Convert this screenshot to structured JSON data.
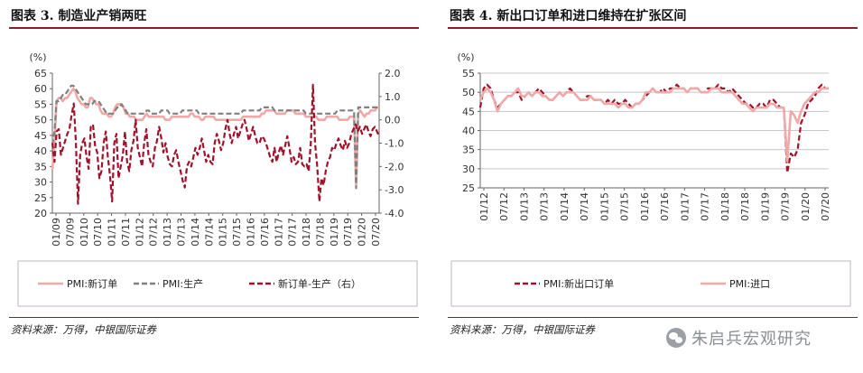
{
  "left": {
    "title": "图表 3. 制造业产销两旺",
    "source": "资料来源：万得，中银国际证券"
  },
  "right": {
    "title": "图表 4. 新出口订单和进口维持在扩张区间",
    "source": "资料来源：万得，中银国际证券"
  },
  "watermark": {
    "text": "朱启兵宏观研究",
    "icon": "wechat-icon"
  },
  "chart_data": [
    {
      "type": "line",
      "unit": "(%)",
      "grid": false,
      "legend_placement": "bottom",
      "colors": {
        "new_orders": "#f0a8a8",
        "production": "#808080",
        "diff": "#a0122a"
      },
      "ylim": [
        20,
        65
      ],
      "y2lim": [
        -4,
        2
      ],
      "yticks": [
        65,
        60,
        55,
        50,
        45,
        40,
        35,
        30,
        25,
        20
      ],
      "y2ticks": [
        "2.0",
        "1.0",
        "0.0",
        "-1.0",
        "-2.0",
        "-3.0",
        "-4.0"
      ],
      "x_tick_labels": [
        "01/09",
        "07/09",
        "01/10",
        "07/10",
        "01/11",
        "07/11",
        "01/12",
        "07/12",
        "01/13",
        "07/13",
        "01/14",
        "07/14",
        "01/15",
        "07/15",
        "01/16",
        "07/16",
        "01/17",
        "07/17",
        "01/18",
        "07/18",
        "01/19",
        "07/19",
        "01/20",
        "07/20"
      ],
      "series": [
        {
          "name": "PMI:新订单",
          "axis": "left",
          "style": "solid",
          "values": [
            34,
            42,
            56,
            57,
            57,
            56,
            57,
            57,
            58,
            59,
            60,
            59,
            57,
            56,
            55,
            55,
            54,
            54,
            57,
            57,
            56,
            55,
            55,
            53,
            52,
            52,
            52,
            51,
            51,
            52,
            54,
            55,
            55,
            55,
            54,
            52,
            52,
            51,
            51,
            51,
            50,
            50,
            50,
            50,
            51,
            52,
            51,
            51,
            51,
            51,
            51,
            51,
            51,
            51,
            50,
            50,
            50,
            51,
            51,
            51,
            51,
            51,
            51,
            51,
            51,
            51,
            52,
            52,
            51,
            51,
            51,
            50,
            50,
            51,
            51,
            51,
            51,
            51,
            50,
            50,
            50,
            50,
            50,
            50,
            50,
            50,
            50,
            50,
            50,
            50,
            50,
            51,
            51,
            51,
            51,
            51,
            51,
            51,
            51,
            51,
            52,
            52,
            53,
            53,
            53,
            53,
            53,
            52,
            52,
            52,
            52,
            52,
            53,
            53,
            53,
            53,
            52,
            52,
            52,
            52,
            52,
            51,
            51,
            51,
            51,
            51,
            51,
            50,
            50,
            50,
            50,
            51,
            51,
            51,
            51,
            51,
            51,
            50,
            50,
            50,
            50,
            50,
            51,
            51,
            51,
            29,
            52,
            53,
            52,
            51,
            52,
            52,
            53,
            53,
            53,
            54,
            54
          ]
        },
        {
          "name": "PMI:生产",
          "axis": "left",
          "style": "dash",
          "values": [
            42,
            46,
            56,
            56,
            57,
            58,
            58,
            59,
            60,
            61,
            61,
            60,
            59,
            58,
            57,
            56,
            55,
            55,
            55,
            55,
            56,
            56,
            56,
            55,
            54,
            53,
            52,
            52,
            52,
            52,
            53,
            54,
            54,
            55,
            54,
            53,
            52,
            52,
            52,
            52,
            52,
            52,
            52,
            52,
            52,
            53,
            53,
            52,
            52,
            52,
            52,
            52,
            53,
            53,
            53,
            53,
            52,
            52,
            52,
            52,
            52,
            52,
            53,
            53,
            53,
            53,
            53,
            53,
            53,
            53,
            52,
            52,
            52,
            52,
            52,
            52,
            52,
            52,
            52,
            52,
            52,
            52,
            52,
            52,
            52,
            52,
            52,
            52,
            52,
            52,
            52,
            53,
            53,
            53,
            53,
            53,
            53,
            53,
            53,
            53,
            54,
            54,
            54,
            54,
            54,
            54,
            53,
            53,
            53,
            53,
            53,
            53,
            53,
            53,
            53,
            53,
            53,
            53,
            53,
            53,
            53,
            52,
            52,
            52,
            52,
            52,
            52,
            52,
            52,
            52,
            52,
            52,
            52,
            52,
            52,
            52,
            53,
            53,
            53,
            53,
            53,
            53,
            53,
            53,
            53,
            28,
            54,
            54,
            54,
            54,
            54,
            54,
            54,
            54,
            54,
            54,
            54
          ]
        },
        {
          "name": "新订单-生产（右）",
          "axis": "right",
          "style": "dash",
          "values": [
            -1.0,
            -1.8,
            -0.5,
            -0.4,
            -1.5,
            -1.2,
            -0.9,
            -0.6,
            -0.4,
            0.2,
            0.7,
            -0.9,
            -3.6,
            -1.5,
            -1.0,
            -0.8,
            -1.6,
            -2.1,
            -0.3,
            -0.2,
            -1.1,
            -1.4,
            -2.5,
            -2.2,
            -1.0,
            -0.5,
            -1.6,
            -2.4,
            -3.5,
            -1.0,
            -0.6,
            -2.5,
            -2.0,
            -1.5,
            -0.5,
            -1.8,
            -2.2,
            -1.3,
            -0.9,
            0.0,
            -1.2,
            -1.6,
            -2.0,
            -1.0,
            -0.4,
            -1.5,
            -1.8,
            -2.0,
            -1.2,
            -0.9,
            -0.3,
            -0.8,
            -1.4,
            -1.0,
            -1.6,
            -1.9,
            -2.0,
            -1.5,
            -1.3,
            -1.8,
            -2.2,
            -2.6,
            -2.9,
            -2.0,
            -1.8,
            -2.0,
            -1.6,
            -1.2,
            -1.5,
            -1.2,
            -0.8,
            -1.3,
            -1.8,
            -1.5,
            -1.8,
            -1.9,
            -1.0,
            -0.6,
            -0.9,
            -1.3,
            -1.0,
            -0.4,
            0.0,
            -0.6,
            -1.0,
            -0.6,
            -0.3,
            -0.8,
            -0.5,
            -0.2,
            0.0,
            -0.4,
            -0.9,
            -0.6,
            -0.3,
            -0.7,
            -1.0,
            -1.0,
            -0.7,
            -0.8,
            -1.0,
            -1.3,
            -1.6,
            -1.8,
            -1.2,
            -1.8,
            -1.4,
            -1.1,
            -1.5,
            -1.1,
            -0.7,
            -1.2,
            -1.8,
            -1.6,
            -1.9,
            -1.8,
            -1.2,
            -1.9,
            -2.0,
            -1.9,
            -2.2,
            -1.0,
            1.5,
            -1.0,
            -2.0,
            -3.5,
            -2.5,
            -2.8,
            -2.2,
            -1.8,
            -1.6,
            -1.2,
            -1.3,
            -1.0,
            -0.8,
            -1.1,
            -1.3,
            -0.9,
            -1.2,
            -1.0,
            -0.6,
            -0.4,
            -0.2,
            -0.5,
            -0.3,
            -0.6,
            -0.4,
            -0.2,
            -0.5,
            -0.7,
            -0.4,
            -0.3,
            -0.5,
            -0.7
          ]
        }
      ]
    },
    {
      "type": "line",
      "unit": "(%)",
      "grid": true,
      "legend_placement": "bottom",
      "colors": {
        "export": "#a0122a",
        "import": "#f0a8a8"
      },
      "ylim": [
        25,
        55
      ],
      "yticks": [
        55,
        50,
        45,
        40,
        35,
        30,
        25
      ],
      "x_tick_labels": [
        "01/12",
        "07/12",
        "01/13",
        "07/13",
        "01/14",
        "07/14",
        "01/15",
        "07/15",
        "01/16",
        "07/16",
        "01/17",
        "07/17",
        "01/18",
        "07/18",
        "01/19",
        "07/19",
        "01/20",
        "07/20"
      ],
      "series": [
        {
          "name": "PMI:新出口订单",
          "axis": "left",
          "style": "dash",
          "values": [
            46,
            51,
            52,
            51,
            48,
            46,
            47,
            48,
            49,
            49,
            50,
            50,
            48,
            49,
            50,
            49,
            50,
            51,
            50,
            49,
            48,
            48,
            49,
            50,
            49,
            50,
            51,
            50,
            49,
            48,
            48,
            49,
            49,
            48,
            48,
            48,
            47,
            48,
            47,
            48,
            47,
            47,
            48,
            47,
            46,
            47,
            47,
            48,
            49,
            50,
            51,
            50,
            50,
            51,
            50,
            51,
            51,
            52,
            51,
            51,
            50,
            51,
            51,
            51,
            50,
            50,
            51,
            51,
            51,
            52,
            51,
            51,
            50,
            51,
            50,
            49,
            48,
            47,
            47,
            46,
            46,
            47,
            47,
            46,
            48,
            48,
            47,
            46,
            46,
            29,
            34,
            33,
            35,
            42,
            44,
            47,
            48,
            49,
            51,
            52,
            51,
            51
          ]
        },
        {
          "name": "PMI:进口",
          "axis": "left",
          "style": "solid",
          "values": [
            48,
            50,
            51,
            50,
            48,
            45,
            47,
            48,
            49,
            49,
            50,
            51,
            49,
            49,
            50,
            49,
            50,
            50,
            49,
            49,
            48,
            48,
            49,
            50,
            49,
            50,
            50,
            50,
            49,
            48,
            48,
            48,
            49,
            48,
            48,
            48,
            47,
            47,
            47,
            47,
            46,
            47,
            47,
            46,
            46,
            47,
            47,
            48,
            50,
            50,
            51,
            50,
            50,
            50,
            50,
            50,
            51,
            51,
            51,
            51,
            50,
            51,
            51,
            51,
            50,
            50,
            50,
            51,
            51,
            51,
            50,
            50,
            50,
            50,
            49,
            48,
            47,
            47,
            46,
            45,
            46,
            46,
            46,
            46,
            47,
            47,
            46,
            46,
            46,
            32,
            45,
            44,
            42,
            45,
            47,
            48,
            49,
            50,
            50,
            51,
            51,
            51
          ]
        }
      ]
    }
  ]
}
